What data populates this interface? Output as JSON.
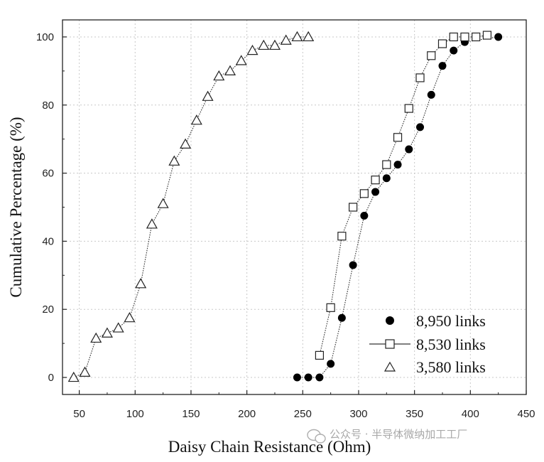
{
  "chart_data": {
    "type": "scatter",
    "title": "",
    "xlabel": "Daisy Chain Resistance (Ohm)",
    "ylabel": "Cumulative Percentage (%)",
    "xlim": [
      35,
      450
    ],
    "ylim": [
      -5,
      105
    ],
    "xticks": [
      50,
      100,
      150,
      200,
      250,
      300,
      350,
      400,
      450
    ],
    "yticks": [
      0,
      20,
      40,
      60,
      80,
      100
    ],
    "grid": true,
    "legend_position": "bottom-right",
    "series": [
      {
        "name": "8,950 links",
        "marker": "filled-circle",
        "x": [
          245,
          255,
          265,
          275,
          285,
          295,
          305,
          315,
          325,
          335,
          345,
          355,
          365,
          375,
          385,
          395,
          425
        ],
        "y": [
          0,
          0,
          0,
          4,
          17.5,
          33,
          47.5,
          54.5,
          58.5,
          62.5,
          67,
          73.5,
          83,
          91.5,
          96,
          98.5,
          100
        ]
      },
      {
        "name": "8,530 links",
        "marker": "open-square",
        "x": [
          265,
          275,
          285,
          295,
          305,
          315,
          325,
          335,
          345,
          355,
          365,
          375,
          385,
          395,
          405,
          415
        ],
        "y": [
          6.5,
          20.5,
          41.5,
          50,
          54,
          58,
          62.5,
          70.5,
          79,
          88,
          94.5,
          98,
          100,
          100,
          100,
          100.5
        ]
      },
      {
        "name": "3,580 links",
        "marker": "open-triangle",
        "x": [
          45,
          55,
          65,
          75,
          85,
          95,
          105,
          115,
          125,
          135,
          145,
          155,
          165,
          175,
          185,
          195,
          205,
          215,
          225,
          235,
          245,
          255
        ],
        "y": [
          0,
          1.5,
          11.5,
          13,
          14.5,
          17.5,
          27.5,
          45,
          51,
          63.5,
          68.5,
          75.5,
          82.5,
          88.5,
          90,
          93,
          96,
          97.5,
          97.5,
          99,
          100,
          100
        ]
      }
    ]
  },
  "watermark": {
    "text": "公众号 · 半导体微纳加工工厂",
    "icon": "wechat-icon"
  },
  "colors": {
    "axis": "#222222",
    "grid": "#c8c8c8",
    "marker": "#000000",
    "line": "#333333"
  }
}
